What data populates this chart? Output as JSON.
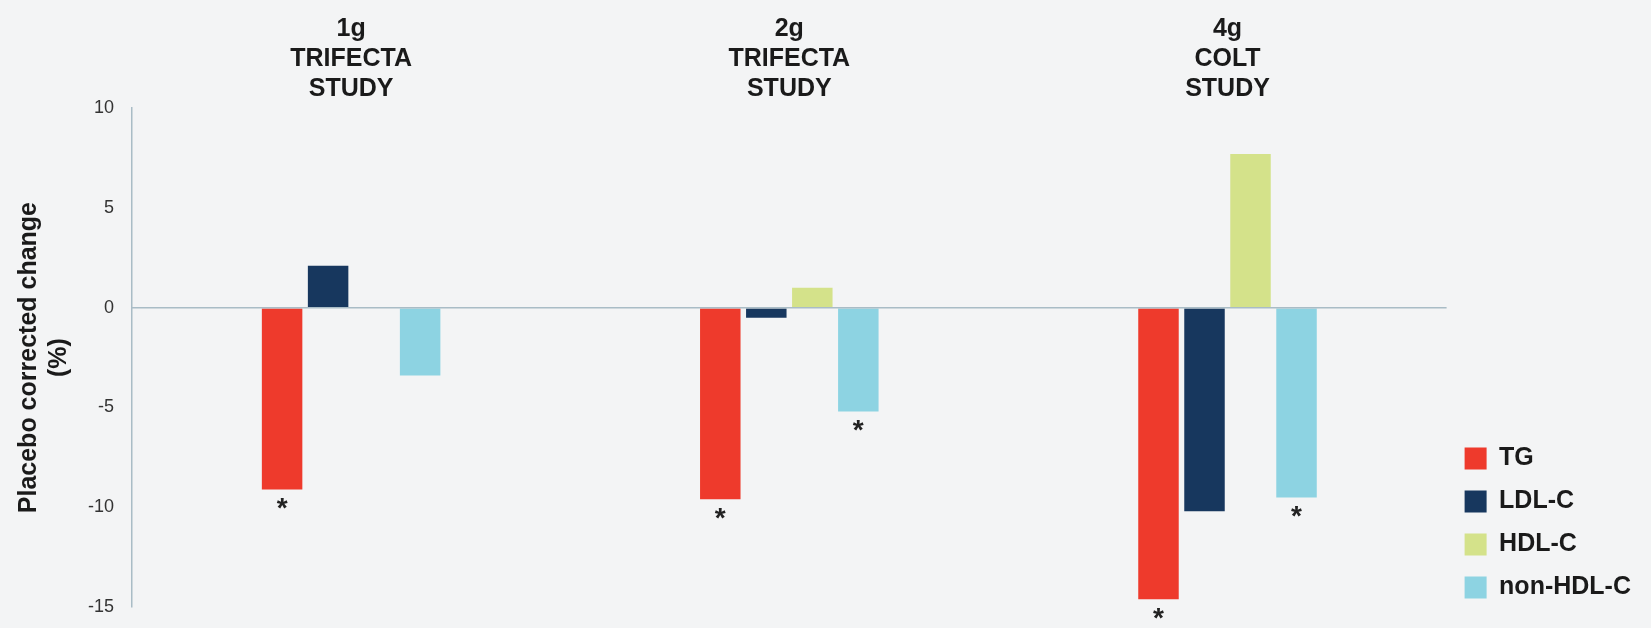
{
  "chart_data": {
    "type": "bar",
    "ylabel": "Placebo corrected change (%)",
    "categories": [
      "1g TRIFECTA STUDY",
      "2g TRIFECTA STUDY",
      "4g COLT STUDY"
    ],
    "series": [
      {
        "name": "TG",
        "color": "#ee3a2c",
        "values": [
          -9.1,
          -9.6,
          -14.6
        ],
        "value_labels": [
          "*",
          "*",
          "*"
        ]
      },
      {
        "name": "LDL-C",
        "color": "#17375e",
        "values": [
          2.1,
          -0.5,
          -10.2
        ]
      },
      {
        "name": "HDL-C",
        "color": "#d4e28a",
        "values": [
          null,
          1.0,
          7.7
        ]
      },
      {
        "name": "non-HDL-C",
        "color": "#8dd3e2",
        "values": [
          -3.4,
          -5.2,
          -9.5
        ],
        "value_labels": [
          null,
          "*",
          "*"
        ]
      }
    ],
    "ylim": [
      -15,
      10
    ],
    "yticks": [
      -15,
      -10,
      -5,
      0,
      5,
      10
    ],
    "grid": false,
    "legend": "bottom right",
    "ref_lines": [
      {
        "axis": "y",
        "value": 0,
        "color": "#a9bcc6"
      }
    ]
  }
}
